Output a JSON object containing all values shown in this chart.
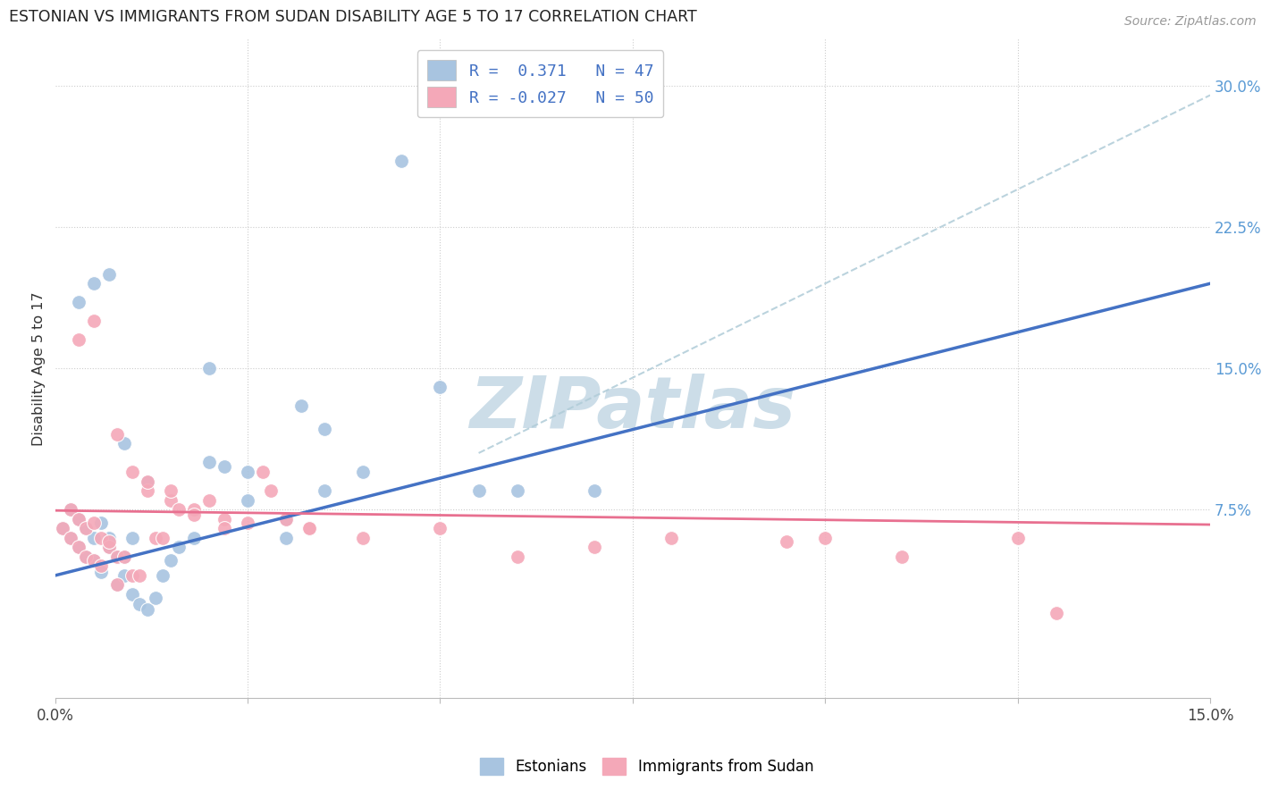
{
  "title": "ESTONIAN VS IMMIGRANTS FROM SUDAN DISABILITY AGE 5 TO 17 CORRELATION CHART",
  "source": "Source: ZipAtlas.com",
  "ylabel": "Disability Age 5 to 17",
  "xlim": [
    0.0,
    0.15
  ],
  "ylim": [
    -0.025,
    0.325
  ],
  "xtick_positions": [
    0.0,
    0.025,
    0.05,
    0.075,
    0.1,
    0.125,
    0.15
  ],
  "xtick_labels": [
    "0.0%",
    "",
    "",
    "",
    "",
    "",
    "15.0%"
  ],
  "ytick_values_right": [
    0.075,
    0.15,
    0.225,
    0.3
  ],
  "ytick_labels_right": [
    "7.5%",
    "15.0%",
    "22.5%",
    "30.0%"
  ],
  "r_estonian": 0.371,
  "n_estonian": 47,
  "r_sudan": -0.027,
  "n_sudan": 50,
  "color_estonian": "#a8c4e0",
  "color_sudan": "#f4a8b8",
  "line_color_estonian": "#4472c4",
  "line_color_sudan": "#e87090",
  "line_color_dashed": "#b0ccd8",
  "watermark_color": "#ccdde8",
  "legend_text_color": "#4472c4",
  "est_line_x0": 0.0,
  "est_line_y0": 0.04,
  "est_line_x1": 0.15,
  "est_line_y1": 0.195,
  "sud_line_x0": 0.0,
  "sud_line_y0": 0.0745,
  "sud_line_x1": 0.15,
  "sud_line_y1": 0.067,
  "dash_line_x0": 0.055,
  "dash_line_y0": 0.105,
  "dash_line_x1": 0.15,
  "dash_line_y1": 0.295,
  "estonian_x": [
    0.001,
    0.002,
    0.002,
    0.003,
    0.003,
    0.004,
    0.004,
    0.005,
    0.005,
    0.006,
    0.006,
    0.007,
    0.007,
    0.008,
    0.008,
    0.009,
    0.009,
    0.01,
    0.01,
    0.011,
    0.012,
    0.013,
    0.014,
    0.015,
    0.016,
    0.018,
    0.02,
    0.022,
    0.025,
    0.03,
    0.032,
    0.035,
    0.003,
    0.005,
    0.007,
    0.009,
    0.012,
    0.02,
    0.025,
    0.03,
    0.035,
    0.04,
    0.045,
    0.05,
    0.055,
    0.06,
    0.07
  ],
  "estonian_y": [
    0.065,
    0.06,
    0.075,
    0.055,
    0.07,
    0.05,
    0.065,
    0.06,
    0.048,
    0.068,
    0.042,
    0.055,
    0.06,
    0.05,
    0.035,
    0.05,
    0.04,
    0.03,
    0.06,
    0.025,
    0.022,
    0.028,
    0.04,
    0.048,
    0.055,
    0.06,
    0.1,
    0.098,
    0.095,
    0.06,
    0.13,
    0.118,
    0.185,
    0.195,
    0.2,
    0.11,
    0.09,
    0.15,
    0.08,
    0.07,
    0.085,
    0.095,
    0.26,
    0.14,
    0.085,
    0.085,
    0.085
  ],
  "sudan_x": [
    0.001,
    0.002,
    0.002,
    0.003,
    0.003,
    0.004,
    0.004,
    0.005,
    0.005,
    0.006,
    0.006,
    0.007,
    0.007,
    0.008,
    0.008,
    0.009,
    0.01,
    0.011,
    0.012,
    0.013,
    0.014,
    0.015,
    0.016,
    0.018,
    0.02,
    0.022,
    0.025,
    0.027,
    0.03,
    0.033,
    0.003,
    0.005,
    0.008,
    0.01,
    0.012,
    0.015,
    0.018,
    0.022,
    0.028,
    0.033,
    0.04,
    0.05,
    0.06,
    0.07,
    0.08,
    0.095,
    0.1,
    0.11,
    0.125,
    0.13
  ],
  "sudan_y": [
    0.065,
    0.06,
    0.075,
    0.055,
    0.07,
    0.05,
    0.065,
    0.068,
    0.048,
    0.06,
    0.045,
    0.055,
    0.058,
    0.05,
    0.035,
    0.05,
    0.04,
    0.04,
    0.085,
    0.06,
    0.06,
    0.08,
    0.075,
    0.075,
    0.08,
    0.07,
    0.068,
    0.095,
    0.07,
    0.065,
    0.165,
    0.175,
    0.115,
    0.095,
    0.09,
    0.085,
    0.072,
    0.065,
    0.085,
    0.065,
    0.06,
    0.065,
    0.05,
    0.055,
    0.06,
    0.058,
    0.06,
    0.05,
    0.06,
    0.02
  ]
}
